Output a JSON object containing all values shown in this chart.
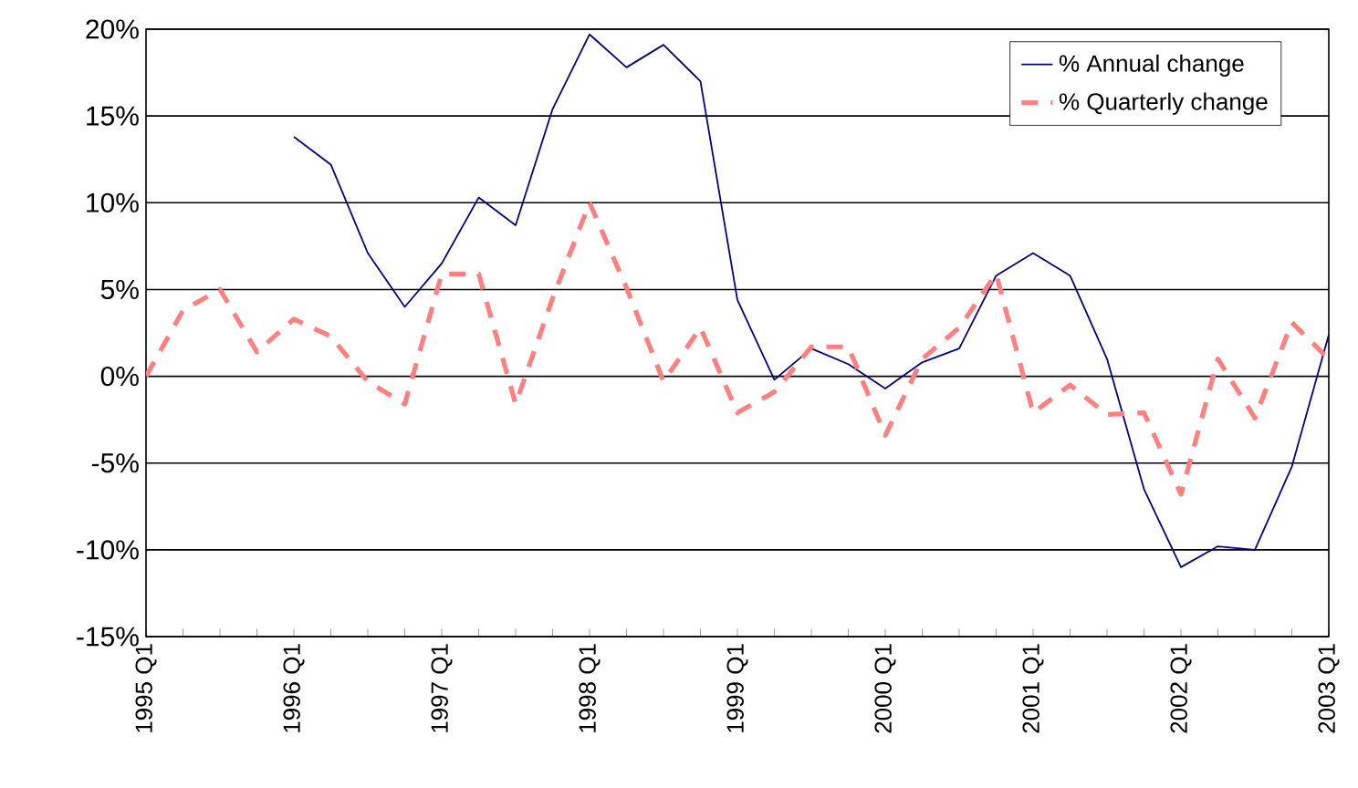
{
  "chart_data": {
    "type": "line",
    "categories": [
      "1995 Q1",
      null,
      null,
      null,
      "1996 Q1",
      null,
      null,
      null,
      "1997 Q1",
      null,
      null,
      null,
      "1998 Q1",
      null,
      null,
      null,
      "1999 Q1",
      null,
      null,
      null,
      "2000 Q1",
      null,
      null,
      null,
      "2001 Q1",
      null,
      null,
      null,
      "2002 Q1",
      null,
      null,
      null,
      "2003 Q1"
    ],
    "series": [
      {
        "name": "% Annual change",
        "color": "#000080",
        "line_style": "solid",
        "values": [
          null,
          null,
          null,
          null,
          13.8,
          12.2,
          7.1,
          4.0,
          6.5,
          10.3,
          8.7,
          15.4,
          19.7,
          17.8,
          19.1,
          17.0,
          4.4,
          -0.2,
          1.6,
          0.7,
          -0.7,
          0.8,
          1.6,
          5.8,
          7.1,
          5.8,
          1.0,
          -6.5,
          -11.0,
          -9.8,
          -10.0,
          -5.2,
          2.4
        ]
      },
      {
        "name": "% Quarterly change",
        "color": "#ff8080",
        "line_style": "dashed",
        "values": [
          0.0,
          3.8,
          5.0,
          1.4,
          3.3,
          2.3,
          -0.3,
          -1.6,
          5.9,
          5.9,
          -1.6,
          4.5,
          10.0,
          5.1,
          -0.3,
          2.8,
          -2.1,
          -0.9,
          1.7,
          1.7,
          -3.4,
          1.0,
          2.8,
          5.9,
          -2.1,
          -0.5,
          -2.2,
          -2.1,
          -6.8,
          1.0,
          -2.4,
          3.1,
          1.0
        ]
      }
    ],
    "ylim": [
      -15,
      20
    ],
    "yticks": [
      {
        "value": -15,
        "label": "-15%"
      },
      {
        "value": -10,
        "label": "-10%"
      },
      {
        "value": -5,
        "label": "-5%"
      },
      {
        "value": 0,
        "label": "0%"
      },
      {
        "value": 5,
        "label": "5%"
      },
      {
        "value": 10,
        "label": "10%"
      },
      {
        "value": 15,
        "label": "15%"
      },
      {
        "value": 20,
        "label": "20%"
      }
    ],
    "grid": "y",
    "legend": "top right",
    "marker": "none"
  }
}
